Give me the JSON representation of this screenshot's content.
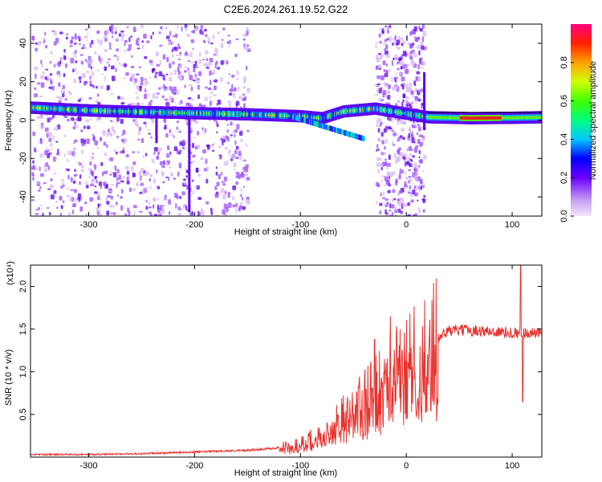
{
  "title": "C2E6.2024.261.19.52.G22",
  "chart_data": [
    {
      "type": "heatmap",
      "title": "C2E6.2024.261.19.52.G22",
      "xlabel": "Height of straight line (km)",
      "ylabel": "Frequency (Hz)",
      "xlim": [
        -355,
        128
      ],
      "ylim": [
        -50,
        50
      ],
      "x_ticks": [
        -300,
        -200,
        -100,
        0,
        100
      ],
      "y_ticks": [
        -40,
        -20,
        0,
        20,
        40
      ],
      "colorbar": {
        "label": "Normalized spectral amplitude",
        "range": [
          0.0,
          1.0
        ],
        "ticks": [
          0.0,
          0.2,
          0.4,
          0.6,
          0.8
        ]
      },
      "ridge": [
        {
          "x": -355,
          "y": 6.5
        },
        {
          "x": -300,
          "y": 5.0
        },
        {
          "x": -250,
          "y": 4.2
        },
        {
          "x": -200,
          "y": 3.6
        },
        {
          "x": -150,
          "y": 3.0
        },
        {
          "x": -100,
          "y": 2.0
        },
        {
          "x": -80,
          "y": 1.0
        },
        {
          "x": -60,
          "y": 4.5
        },
        {
          "x": -30,
          "y": 6.0
        },
        {
          "x": 20,
          "y": 1.5
        },
        {
          "x": 60,
          "y": 1.0
        },
        {
          "x": 100,
          "y": 1.2
        },
        {
          "x": 128,
          "y": 1.5
        }
      ]
    },
    {
      "type": "line",
      "xlabel": "Height of straight line (km)",
      "ylabel": "SNR (10 * v/v)",
      "y_multiplier": "(x10⁴)",
      "xlim": [
        -355,
        128
      ],
      "ylim": [
        0,
        2.25
      ],
      "x_ticks": [
        -300,
        -200,
        -100,
        0,
        100
      ],
      "y_ticks": [
        0.5,
        1.0,
        1.5,
        2.0
      ],
      "series": [
        {
          "color": "#e8322e",
          "envelope": [
            {
              "x": -355,
              "y": 0.03
            },
            {
              "x": -300,
              "y": 0.03
            },
            {
              "x": -250,
              "y": 0.04
            },
            {
              "x": -200,
              "y": 0.06
            },
            {
              "x": -150,
              "y": 0.08
            },
            {
              "x": -110,
              "y": 0.12
            },
            {
              "x": -80,
              "y": 0.25
            },
            {
              "x": -60,
              "y": 0.45
            },
            {
              "x": -40,
              "y": 0.65
            },
            {
              "x": -20,
              "y": 0.85
            },
            {
              "x": 0,
              "y": 1.05
            },
            {
              "x": 10,
              "y": 1.15
            },
            {
              "x": 20,
              "y": 1.25
            },
            {
              "x": 30,
              "y": 1.4
            },
            {
              "x": 40,
              "y": 1.48
            },
            {
              "x": 60,
              "y": 1.49
            },
            {
              "x": 80,
              "y": 1.47
            },
            {
              "x": 100,
              "y": 1.46
            },
            {
              "x": 128,
              "y": 1.45
            }
          ],
          "spikes": [
            {
              "x": -15,
              "y": 1.65
            },
            {
              "x": -30,
              "y": 1.38
            },
            {
              "x": -4,
              "y": 1.25
            },
            {
              "x": 13,
              "y": 1.3
            },
            {
              "x": 108,
              "y": 2.25
            },
            {
              "x": 110,
              "y": 0.65
            }
          ]
        }
      ]
    }
  ]
}
